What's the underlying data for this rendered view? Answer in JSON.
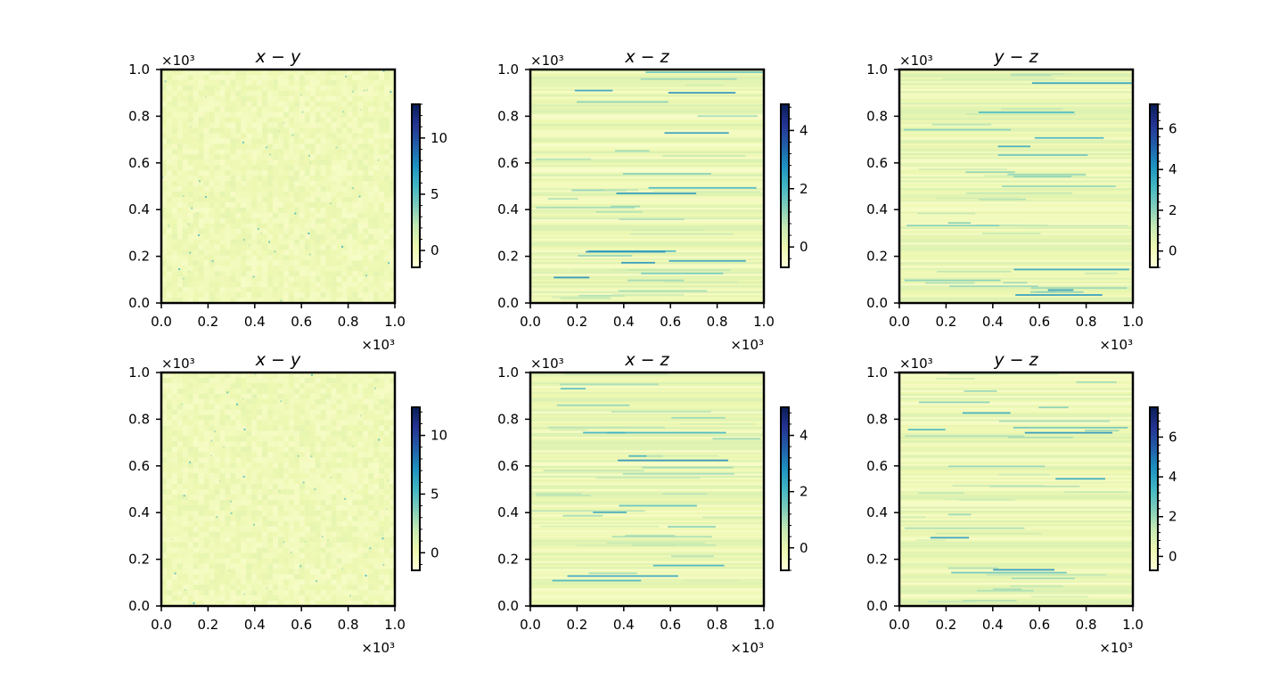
{
  "figure": {
    "multiplier_label": "×10³",
    "x_ticks": [
      "0.0",
      "0.2",
      "0.4",
      "0.6",
      "0.8",
      "1.0"
    ],
    "y_ticks": [
      "0.0",
      "0.2",
      "0.4",
      "0.6",
      "0.8",
      "1.0"
    ]
  },
  "chart_data": [
    {
      "type": "heatmap",
      "title": "x − y",
      "pattern": "noise",
      "xlim": [
        0,
        1000
      ],
      "ylim": [
        0,
        1000
      ],
      "colormap": "YlGnBu",
      "colorbar": {
        "range": [
          -1.5,
          13
        ],
        "ticks": [
          0,
          5,
          10
        ],
        "tick_labels": [
          "0",
          "5",
          "10"
        ]
      }
    },
    {
      "type": "heatmap",
      "title": "x − z",
      "pattern": "horizontal-streaks",
      "xlim": [
        0,
        1000
      ],
      "ylim": [
        0,
        1000
      ],
      "colormap": "YlGnBu",
      "colorbar": {
        "range": [
          -0.7,
          4.9
        ],
        "ticks": [
          0,
          2,
          4
        ],
        "tick_labels": [
          "0",
          "2",
          "4"
        ]
      }
    },
    {
      "type": "heatmap",
      "title": "y − z",
      "pattern": "horizontal-streaks",
      "xlim": [
        0,
        1000
      ],
      "ylim": [
        0,
        1000
      ],
      "colormap": "YlGnBu",
      "colorbar": {
        "range": [
          -0.8,
          7.2
        ],
        "ticks": [
          0,
          2,
          4,
          6
        ],
        "tick_labels": [
          "0",
          "2",
          "4",
          "6"
        ]
      }
    },
    {
      "type": "heatmap",
      "title": "x − y",
      "pattern": "noise",
      "xlim": [
        0,
        1000
      ],
      "ylim": [
        0,
        1000
      ],
      "colormap": "YlGnBu",
      "colorbar": {
        "range": [
          -1.5,
          12.4
        ],
        "ticks": [
          0,
          5,
          10
        ],
        "tick_labels": [
          "0",
          "5",
          "10"
        ]
      }
    },
    {
      "type": "heatmap",
      "title": "x − z",
      "pattern": "horizontal-streaks",
      "xlim": [
        0,
        1000
      ],
      "ylim": [
        0,
        1000
      ],
      "colormap": "YlGnBu",
      "colorbar": {
        "range": [
          -0.8,
          5.0
        ],
        "ticks": [
          0,
          2,
          4
        ],
        "tick_labels": [
          "0",
          "2",
          "4"
        ]
      }
    },
    {
      "type": "heatmap",
      "title": "y − z",
      "pattern": "horizontal-streaks",
      "xlim": [
        0,
        1000
      ],
      "ylim": [
        0,
        1000
      ],
      "colormap": "YlGnBu",
      "colorbar": {
        "range": [
          -0.7,
          7.5
        ],
        "ticks": [
          0,
          2,
          4,
          6
        ],
        "tick_labels": [
          "0",
          "2",
          "4",
          "6"
        ]
      }
    }
  ]
}
